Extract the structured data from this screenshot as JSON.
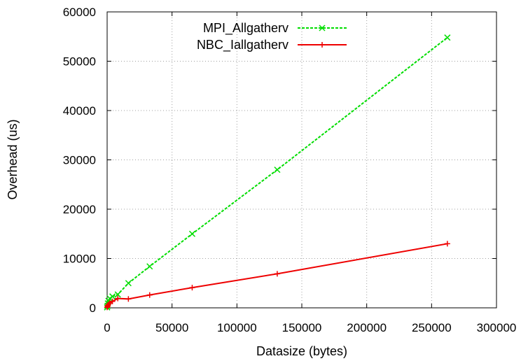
{
  "chart_data": {
    "type": "line",
    "title": "",
    "xlabel": "Datasize (bytes)",
    "ylabel": "Overhead (us)",
    "xlim": [
      0,
      300000
    ],
    "ylim": [
      0,
      60000
    ],
    "xticks": [
      0,
      50000,
      100000,
      150000,
      200000,
      250000,
      300000
    ],
    "yticks": [
      0,
      10000,
      20000,
      30000,
      40000,
      50000,
      60000
    ],
    "xtick_labels": [
      "0",
      "50000",
      "100000",
      "150000",
      "200000",
      "250000",
      "300000"
    ],
    "ytick_labels": [
      "0",
      "10000",
      "20000",
      "30000",
      "40000",
      "50000",
      "60000"
    ],
    "grid": true,
    "legend_position": "top-center",
    "series": [
      {
        "name": "MPI_Allgatherv",
        "color": "#00dd00",
        "marker": "x",
        "line_style": "dashed",
        "x": [
          0,
          256,
          512,
          1024,
          2048,
          4096,
          8192,
          16384,
          32768,
          65536,
          131072,
          262144
        ],
        "y": [
          100,
          400,
          900,
          1400,
          1900,
          2300,
          2700,
          5000,
          8400,
          15000,
          28000,
          54800
        ]
      },
      {
        "name": "NBC_Iallgatherv",
        "color": "#ee0000",
        "marker": "+",
        "line_style": "solid",
        "x": [
          0,
          256,
          512,
          1024,
          2048,
          4096,
          8192,
          16384,
          32768,
          65536,
          131072,
          262144
        ],
        "y": [
          100,
          250,
          450,
          700,
          950,
          1300,
          1900,
          1800,
          2600,
          4100,
          6900,
          13000
        ]
      }
    ]
  }
}
